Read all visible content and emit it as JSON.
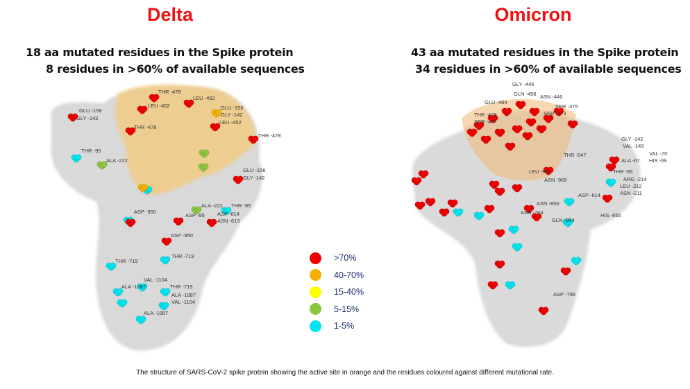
{
  "delta": {
    "title": "Delta",
    "subtitle_line1": "18 aa mutated residues in the Spike protein",
    "subtitle_line2": "8 residues in >60% of available sequences",
    "residue_labels": [
      "THR -478",
      "LEU -452",
      "LEU -452",
      "GLU -156",
      "GLY -142",
      "LEU -452",
      "THR -478",
      "THR -478",
      "GLU -156",
      "GLY -142",
      "THR -95",
      "ALA -222",
      "GLU -156",
      "GLY -142",
      "ALA -222",
      "THR -95",
      "ASP -950",
      "ASP -95",
      "ASP -614",
      "ASN -613",
      "ASP -950",
      "THR -719",
      "THR -719",
      "VAL -1104",
      "ALA -1087",
      "THR -719",
      "ALA -1087",
      "VAL -1104",
      "ALA -1087"
    ]
  },
  "omicron": {
    "title": "Omicron",
    "subtitle_line1": "43 aa mutated residues in the Spike protein",
    "subtitle_line2": "34 residues in >60% of available sequences",
    "residue_labels": [
      "GLY -446",
      "GLN -498",
      "ASN -440",
      "GLU -484",
      "SER -375",
      "SER -373",
      "THR -478",
      "SER -477",
      "THR -547",
      "GLY -142",
      "VAL -143",
      "VAL -70",
      "ALA -67",
      "HIS -69",
      "LEU -981",
      "THR -95",
      "ASN -969",
      "ARG -214",
      "LEU -212",
      "ASN -211",
      "ASP -614",
      "ASN -856",
      "ASN -764",
      "HIS -655",
      "GLN -954",
      "ASP -796"
    ]
  },
  "legend": [
    {
      "label": ">70%",
      "color": "#ee0000"
    },
    {
      "label": "40-70%",
      "color": "#f5b000"
    },
    {
      "label": "15-40%",
      "color": "#ffff00"
    },
    {
      "label": "5-15%",
      "color": "#8dc63f"
    },
    {
      "label": "1-5%",
      "color": "#00e5ee"
    }
  ],
  "active_site_color": "#f5c97a",
  "caption": "The structure of SARS-CoV-2 spike protein showing the active site in orange and the residues coloured against different mutational rate."
}
